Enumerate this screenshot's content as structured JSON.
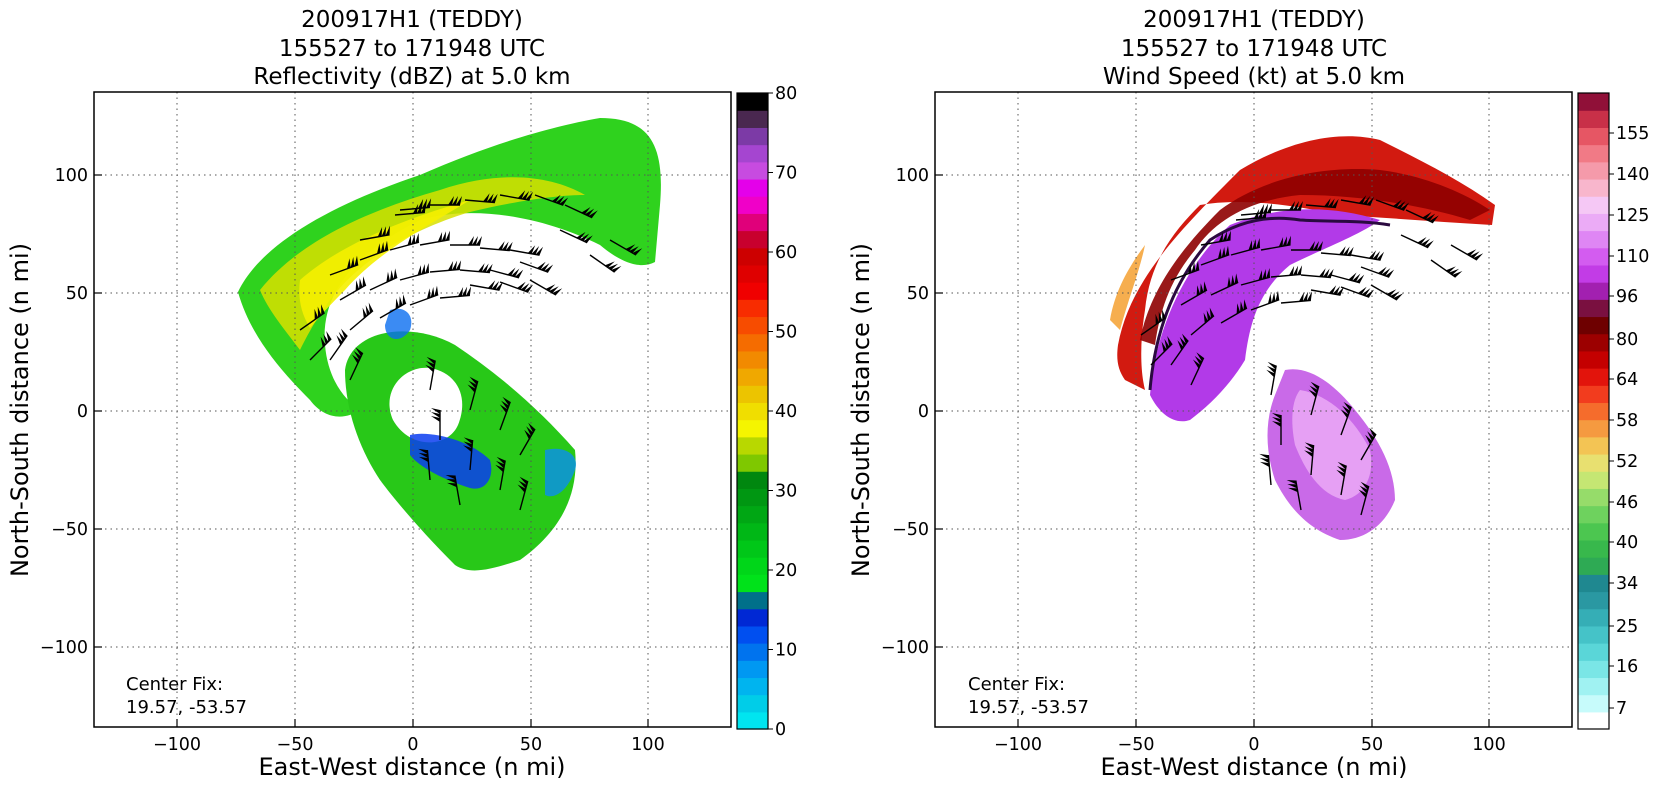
{
  "chart_data": [
    {
      "type": "heatmap",
      "title_lines": [
        "200917H1 (TEDDY)",
        "155527 to 171948 UTC",
        "Reflectivity (dBZ) at 5.0 km"
      ],
      "xlabel": "East-West distance (n mi)",
      "ylabel": "North-South distance (n mi)",
      "xlim": [
        -135,
        135
      ],
      "ylim": [
        -135,
        135
      ],
      "x_ticks": [
        -100,
        -50,
        0,
        50,
        100
      ],
      "y_ticks": [
        -100,
        -50,
        0,
        50,
        100
      ],
      "x_tick_labels": [
        "−100",
        "−50",
        "0",
        "50",
        "100"
      ],
      "y_tick_labels": [
        "−100",
        "−50",
        "0",
        "50",
        "100"
      ],
      "grid": true,
      "center_fix_label": "Center Fix:",
      "center_fix_value": "19.57, -53.57",
      "colorbar": {
        "min": 0,
        "max": 80,
        "ticks": [
          0,
          10,
          20,
          30,
          40,
          50,
          60,
          70,
          80
        ],
        "colors": [
          "#00e5f0",
          "#00cde8",
          "#00b4ef",
          "#0098f2",
          "#0073ee",
          "#004ff0",
          "#0028d4",
          "#00708a",
          "#00e21a",
          "#00d619",
          "#00c718",
          "#00b716",
          "#00a714",
          "#009712",
          "#00870f",
          "#7fc800",
          "#b8d800",
          "#f5f500",
          "#f0de00",
          "#ecc400",
          "#f0a800",
          "#f28a00",
          "#f56c00",
          "#f74c00",
          "#f82c00",
          "#f00000",
          "#df0000",
          "#cd0000",
          "#c8002e",
          "#e0007a",
          "#f000c8",
          "#e400ea",
          "#c74be0",
          "#a545d0",
          "#7c3aa6",
          "#4a2850",
          "#000000"
        ]
      },
      "wind_barbs": "black barbs"
    },
    {
      "type": "heatmap",
      "title_lines": [
        "200917H1 (TEDDY)",
        "155527 to 171948 UTC",
        "Wind Speed (kt) at 5.0 km"
      ],
      "xlabel": "East-West distance (n mi)",
      "ylabel": "North-South distance (n mi)",
      "xlim": [
        -135,
        135
      ],
      "ylim": [
        -135,
        135
      ],
      "x_ticks": [
        -100,
        -50,
        0,
        50,
        100
      ],
      "y_ticks": [
        -100,
        -50,
        0,
        50,
        100
      ],
      "x_tick_labels": [
        "−100",
        "−50",
        "0",
        "50",
        "100"
      ],
      "y_tick_labels": [
        "−100",
        "−50",
        "0",
        "50",
        "100"
      ],
      "grid": true,
      "center_fix_label": "Center Fix:",
      "center_fix_value": "19.57, -53.57",
      "colorbar": {
        "ticks": [
          7,
          16,
          25,
          34,
          40,
          46,
          52,
          58,
          64,
          80,
          96,
          110,
          125,
          140,
          155
        ],
        "n_bins": 36,
        "colors": [
          "#ffffff",
          "#c7fbfb",
          "#a0f2f2",
          "#7ae6e6",
          "#5ad6d8",
          "#45c3c8",
          "#35aeb6",
          "#2a98a2",
          "#1f8890",
          "#2eaa54",
          "#38b84c",
          "#4cc650",
          "#6ed25e",
          "#96dc6a",
          "#c5e673",
          "#e8e070",
          "#f3c454",
          "#f59a40",
          "#f56c2c",
          "#f23c1e",
          "#e2140c",
          "#c40000",
          "#9c0000",
          "#6e0000",
          "#7a1040",
          "#a220b0",
          "#c23ce6",
          "#d35cf0",
          "#df86f4",
          "#ebabf6",
          "#f5c8f5",
          "#f8b6cc",
          "#f59aaa",
          "#f17a86",
          "#e65664",
          "#c83048",
          "#901038"
        ]
      },
      "wind_barbs": "black barbs"
    }
  ]
}
